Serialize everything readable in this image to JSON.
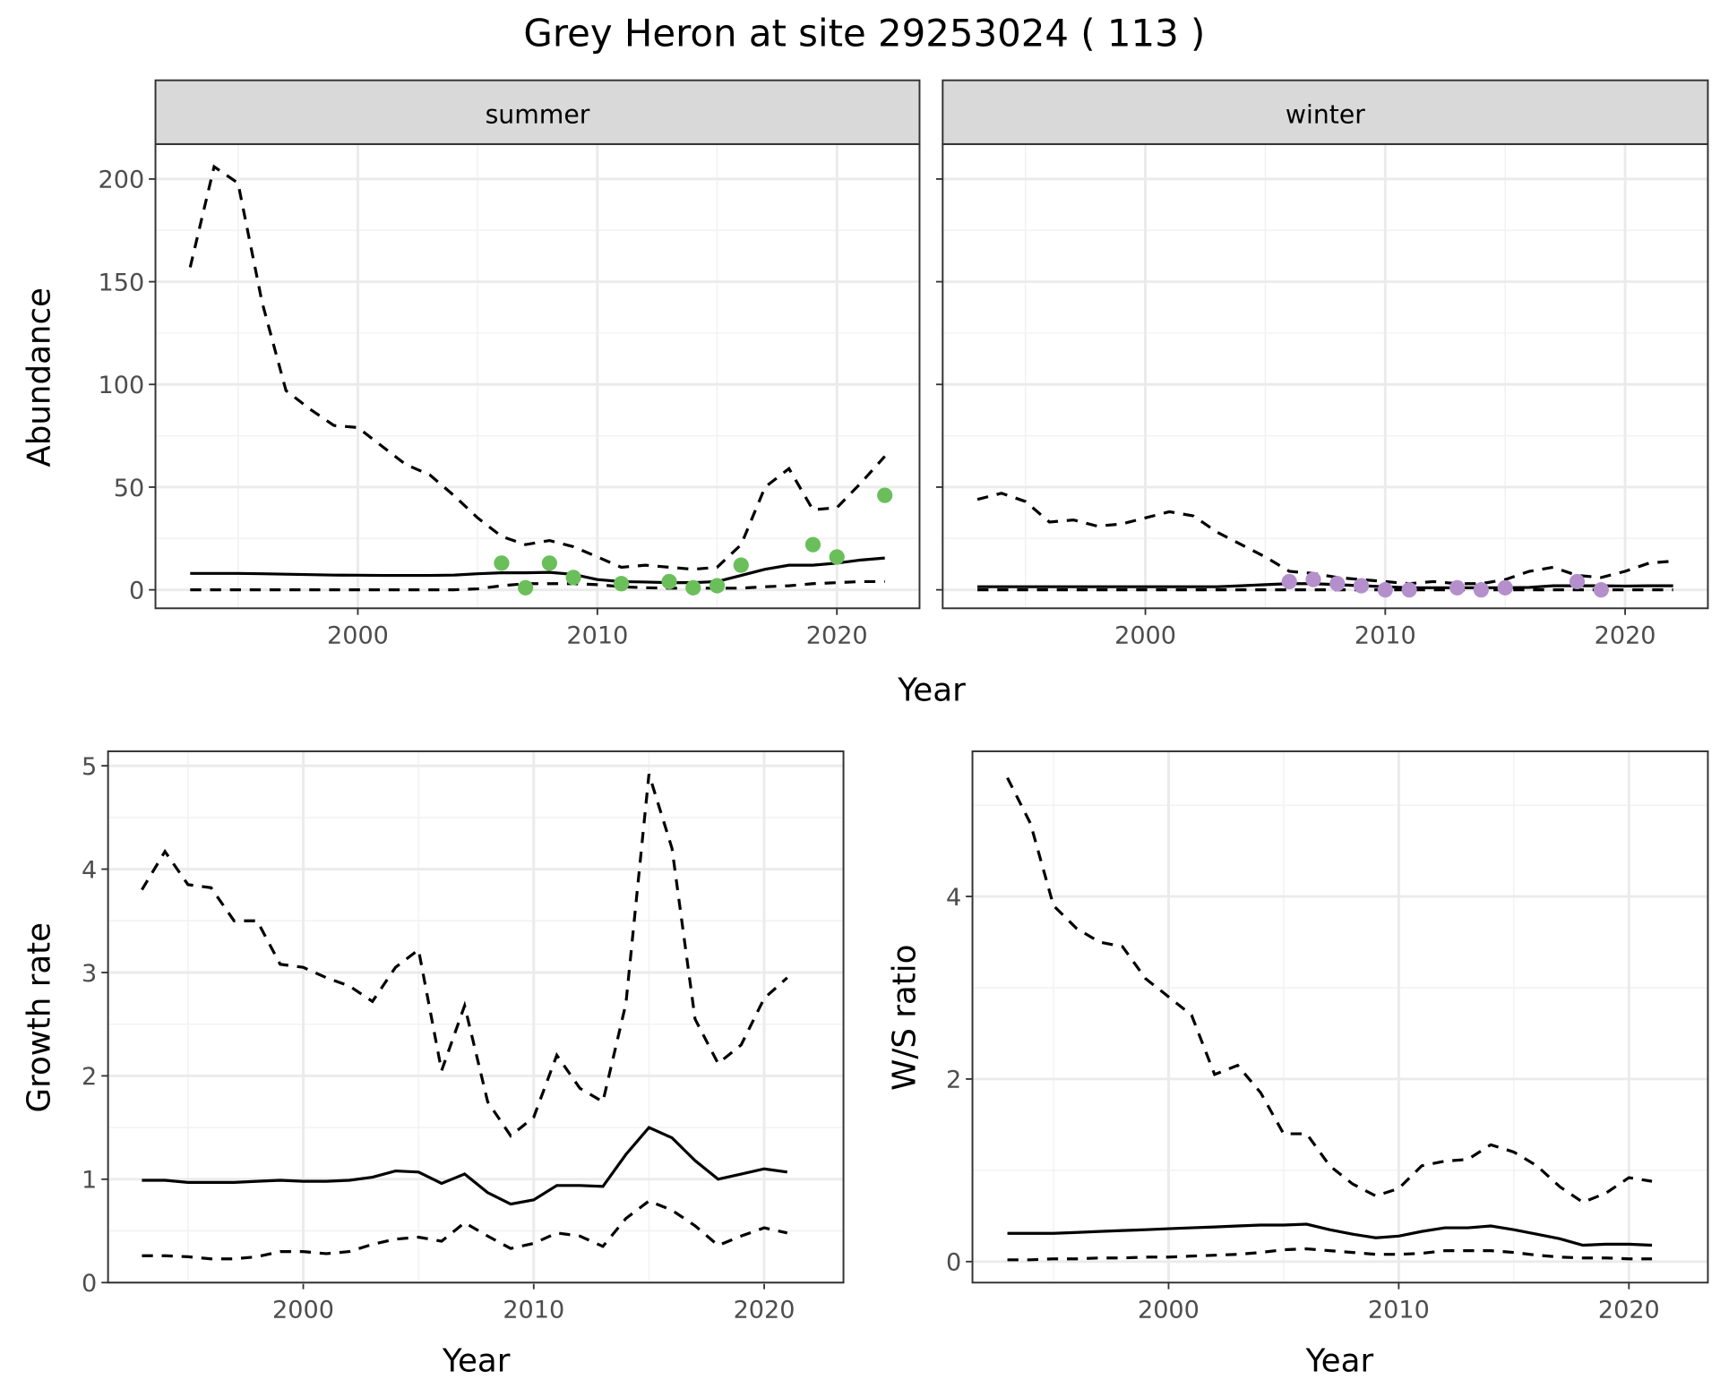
{
  "title": "Grey Heron at site 29253024 ( 113 )",
  "chart_data": [
    {
      "type": "line",
      "panel": "summer",
      "strip": "summer",
      "xlabel": "Year",
      "ylabel": "Abundance",
      "xlim": [
        1991.55,
        2023.45
      ],
      "ylim": [
        -9,
        217
      ],
      "xticks": [
        2000,
        2010,
        2020
      ],
      "yticks": [
        0,
        50,
        100,
        150,
        200
      ],
      "xminor": [
        1995,
        2005,
        2015
      ],
      "yminor": [
        25,
        75,
        125,
        175
      ],
      "x": [
        1993,
        1994,
        1995,
        1996,
        1997,
        1998,
        1999,
        2000,
        2001,
        2002,
        2003,
        2004,
        2005,
        2006,
        2007,
        2008,
        2009,
        2010,
        2011,
        2012,
        2013,
        2014,
        2015,
        2016,
        2017,
        2018,
        2019,
        2020,
        2021,
        2022
      ],
      "series": [
        {
          "name": "upper",
          "style": "dashed",
          "values": [
            157,
            206,
            198,
            140,
            97,
            88,
            80,
            79,
            70,
            61,
            56,
            46,
            35,
            26,
            22,
            24,
            21,
            16,
            11,
            12,
            11,
            10,
            11,
            22,
            50,
            59,
            39,
            40,
            52,
            65
          ]
        },
        {
          "name": "mean",
          "style": "solid",
          "values": [
            8,
            8,
            8,
            7.8,
            7.6,
            7.4,
            7.2,
            7.1,
            7,
            7,
            7,
            7.2,
            7.8,
            8.3,
            8.3,
            8.5,
            7.5,
            5,
            4,
            3.8,
            3.5,
            3.5,
            4,
            7,
            10,
            12,
            12,
            13,
            14.5,
            15.5
          ]
        },
        {
          "name": "lower",
          "style": "dashed",
          "values": [
            0,
            0,
            0,
            0,
            0,
            0,
            0,
            0,
            0,
            0,
            0,
            0,
            0.5,
            2,
            3,
            3,
            3,
            2.5,
            1.5,
            1,
            0.8,
            0.8,
            0.8,
            0.8,
            1.5,
            2,
            3,
            3.5,
            4,
            4
          ]
        }
      ],
      "points": {
        "color": "#6abf5b",
        "x": [
          2006,
          2007,
          2008,
          2009,
          2011,
          2013,
          2014,
          2015,
          2016,
          2019,
          2020,
          2022
        ],
        "y": [
          13,
          1,
          13,
          6,
          3,
          4,
          1,
          2,
          12,
          22,
          16,
          46
        ]
      }
    },
    {
      "type": "line",
      "panel": "winter",
      "strip": "winter",
      "xlabel": "",
      "ylabel": "",
      "xlim": [
        1991.55,
        2023.45
      ],
      "ylim": [
        -9,
        217
      ],
      "xticks": [
        2000,
        2010,
        2020
      ],
      "yticks": [
        0,
        50,
        100,
        150,
        200
      ],
      "xminor": [
        1995,
        2005,
        2015
      ],
      "yminor": [
        25,
        75,
        125,
        175
      ],
      "hide_yticklabels": true,
      "x": [
        1993,
        1994,
        1995,
        1996,
        1997,
        1998,
        1999,
        2000,
        2001,
        2002,
        2003,
        2004,
        2005,
        2006,
        2007,
        2008,
        2009,
        2010,
        2011,
        2012,
        2013,
        2014,
        2015,
        2016,
        2017,
        2018,
        2019,
        2020,
        2021,
        2022
      ],
      "series": [
        {
          "name": "upper",
          "style": "dashed",
          "values": [
            44,
            47,
            43,
            33,
            34,
            31,
            32,
            35,
            38,
            36,
            28,
            22,
            16,
            9,
            8,
            6,
            5,
            4,
            3,
            4,
            3,
            3,
            5,
            9,
            11,
            7,
            6,
            9,
            13,
            14
          ]
        },
        {
          "name": "mean",
          "style": "solid",
          "values": [
            1.5,
            1.5,
            1.5,
            1.5,
            1.5,
            1.5,
            1.5,
            1.5,
            1.5,
            1.5,
            1.5,
            2,
            2.5,
            3,
            3,
            2.5,
            2,
            1.5,
            1,
            1,
            1,
            1,
            1,
            1.2,
            2,
            2,
            2,
            1.8,
            2,
            2
          ]
        },
        {
          "name": "lower",
          "style": "dashed",
          "values": [
            0,
            0,
            0,
            0,
            0,
            0,
            0,
            0,
            0,
            0,
            0,
            0,
            0,
            0,
            0,
            0,
            0,
            0,
            0,
            0,
            0,
            0,
            0,
            0,
            0,
            0,
            0,
            0,
            0,
            0
          ]
        }
      ],
      "points": {
        "color": "#b48fcc",
        "x": [
          2006,
          2007,
          2008,
          2009,
          2010,
          2011,
          2013,
          2014,
          2015,
          2018,
          2019
        ],
        "y": [
          4,
          5,
          3,
          2,
          0,
          0,
          1,
          0,
          1,
          4,
          0
        ]
      }
    },
    {
      "type": "line",
      "panel": "growth",
      "xlabel": "Year",
      "ylabel": "Growth rate",
      "xlim": [
        1991.53,
        2023.44
      ],
      "ylim": [
        0,
        5.14
      ],
      "xticks": [
        2000,
        2010,
        2020
      ],
      "yticks": [
        0,
        1,
        2,
        3,
        4,
        5
      ],
      "xminor": [
        1995,
        2005,
        2015
      ],
      "yminor": [
        0.5,
        1.5,
        2.5,
        3.5,
        4.5
      ],
      "x": [
        1993,
        1994,
        1995,
        1996,
        1997,
        1998,
        1999,
        2000,
        2001,
        2002,
        2003,
        2004,
        2005,
        2006,
        2007,
        2008,
        2009,
        2010,
        2011,
        2012,
        2013,
        2014,
        2015,
        2016,
        2017,
        2018,
        2019,
        2020,
        2021
      ],
      "series": [
        {
          "name": "upper",
          "style": "dashed",
          "values": [
            3.8,
            4.17,
            3.85,
            3.82,
            3.5,
            3.5,
            3.08,
            3.05,
            2.95,
            2.87,
            2.72,
            3.05,
            3.22,
            2.05,
            2.68,
            1.75,
            1.42,
            1.6,
            2.2,
            1.88,
            1.75,
            2.7,
            4.92,
            4.2,
            2.55,
            2.12,
            2.3,
            2.75,
            2.95
          ]
        },
        {
          "name": "mean",
          "style": "solid",
          "values": [
            0.99,
            0.99,
            0.97,
            0.97,
            0.97,
            0.98,
            0.99,
            0.98,
            0.98,
            0.99,
            1.02,
            1.08,
            1.07,
            0.96,
            1.05,
            0.87,
            0.76,
            0.8,
            0.94,
            0.94,
            0.93,
            1.24,
            1.5,
            1.4,
            1.18,
            1.0,
            1.05,
            1.1,
            1.07
          ]
        },
        {
          "name": "lower",
          "style": "dashed",
          "values": [
            0.26,
            0.26,
            0.25,
            0.23,
            0.23,
            0.25,
            0.3,
            0.3,
            0.28,
            0.3,
            0.37,
            0.42,
            0.44,
            0.4,
            0.58,
            0.45,
            0.33,
            0.38,
            0.48,
            0.45,
            0.35,
            0.62,
            0.79,
            0.7,
            0.55,
            0.36,
            0.45,
            0.53,
            0.48
          ]
        }
      ]
    },
    {
      "type": "line",
      "panel": "ratio",
      "xlabel": "Year",
      "ylabel": "W/S ratio",
      "xlim": [
        1991.48,
        2023.43
      ],
      "ylim": [
        -0.23,
        5.59
      ],
      "xticks": [
        2000,
        2010,
        2020
      ],
      "yticks": [
        0,
        2,
        4
      ],
      "xminor": [
        1995,
        2005,
        2015
      ],
      "yminor": [
        1,
        3,
        5
      ],
      "x": [
        1993,
        1994,
        1995,
        1996,
        1997,
        1998,
        1999,
        2000,
        2001,
        2002,
        2003,
        2004,
        2005,
        2006,
        2007,
        2008,
        2009,
        2010,
        2011,
        2012,
        2013,
        2014,
        2015,
        2016,
        2017,
        2018,
        2019,
        2020,
        2021
      ],
      "series": [
        {
          "name": "upper",
          "style": "dashed",
          "values": [
            5.3,
            4.8,
            3.9,
            3.65,
            3.5,
            3.45,
            3.1,
            2.9,
            2.7,
            2.05,
            2.15,
            1.85,
            1.4,
            1.4,
            1.05,
            0.85,
            0.72,
            0.8,
            1.05,
            1.1,
            1.12,
            1.28,
            1.2,
            1.05,
            0.82,
            0.65,
            0.75,
            0.92,
            0.88
          ]
        },
        {
          "name": "mean",
          "style": "solid",
          "values": [
            0.31,
            0.31,
            0.31,
            0.32,
            0.33,
            0.34,
            0.35,
            0.36,
            0.37,
            0.38,
            0.39,
            0.4,
            0.4,
            0.41,
            0.35,
            0.3,
            0.26,
            0.28,
            0.33,
            0.37,
            0.37,
            0.39,
            0.35,
            0.3,
            0.25,
            0.18,
            0.19,
            0.19,
            0.18
          ]
        },
        {
          "name": "lower",
          "style": "dashed",
          "values": [
            0.02,
            0.02,
            0.03,
            0.03,
            0.04,
            0.04,
            0.05,
            0.05,
            0.06,
            0.07,
            0.08,
            0.1,
            0.13,
            0.14,
            0.12,
            0.1,
            0.08,
            0.08,
            0.09,
            0.12,
            0.12,
            0.12,
            0.1,
            0.07,
            0.05,
            0.04,
            0.04,
            0.03,
            0.03
          ]
        }
      ]
    }
  ],
  "shared_xlabel": "Year"
}
